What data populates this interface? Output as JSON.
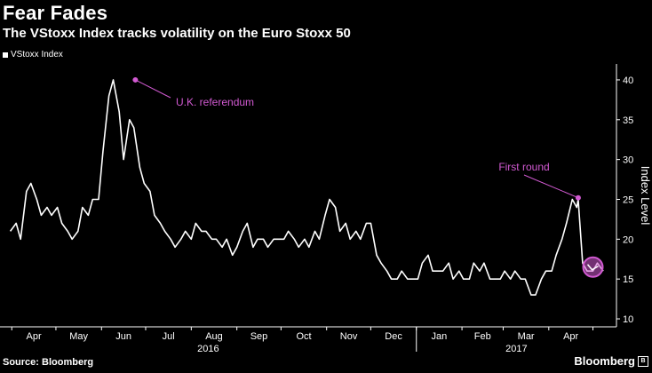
{
  "header": {
    "title": "Fear Fades",
    "subtitle": "The VStoxx Index tracks volatility on the Euro Stoxx 50"
  },
  "footer": {
    "source": "Source: Bloomberg",
    "brand": "Bloomberg",
    "brand_mark": "B"
  },
  "colors": {
    "background": "#000000",
    "line": "#ffffff",
    "annotation": "#d25ad2"
  },
  "chart_data": {
    "type": "line",
    "title": "Fear Fades",
    "subtitle": "The VStoxx Index tracks volatility on the Euro Stoxx 50",
    "ylabel": "Index Level",
    "ylim": [
      9,
      42
    ],
    "yticks": [
      10,
      15,
      20,
      25,
      30,
      35,
      40
    ],
    "y_axis_side": "right",
    "grid": false,
    "legend": {
      "placement": "top-left",
      "entries": [
        "VStoxx Index"
      ]
    },
    "x_month_labels": [
      "Apr",
      "May",
      "Jun",
      "Jul",
      "Aug",
      "Sep",
      "Oct",
      "Nov",
      "Dec",
      "Jan",
      "Feb",
      "Mar",
      "Apr"
    ],
    "x_year_labels": [
      "2016",
      "2017"
    ],
    "series": [
      {
        "name": "VStoxx Index",
        "color": "#ffffff",
        "x": [
          "2016-03-31",
          "2016-04-04",
          "2016-04-07",
          "2016-04-11",
          "2016-04-14",
          "2016-04-18",
          "2016-04-21",
          "2016-04-25",
          "2016-04-28",
          "2016-05-02",
          "2016-05-05",
          "2016-05-09",
          "2016-05-12",
          "2016-05-16",
          "2016-05-19",
          "2016-05-23",
          "2016-05-26",
          "2016-05-30",
          "2016-06-02",
          "2016-06-06",
          "2016-06-09",
          "2016-06-13",
          "2016-06-16",
          "2016-06-20",
          "2016-06-23",
          "2016-06-27",
          "2016-06-30",
          "2016-07-04",
          "2016-07-07",
          "2016-07-11",
          "2016-07-14",
          "2016-07-18",
          "2016-07-21",
          "2016-07-25",
          "2016-07-28",
          "2016-08-01",
          "2016-08-04",
          "2016-08-08",
          "2016-08-11",
          "2016-08-15",
          "2016-08-18",
          "2016-08-22",
          "2016-08-25",
          "2016-08-29",
          "2016-09-01",
          "2016-09-05",
          "2016-09-08",
          "2016-09-12",
          "2016-09-15",
          "2016-09-19",
          "2016-09-22",
          "2016-09-26",
          "2016-09-29",
          "2016-10-03",
          "2016-10-06",
          "2016-10-10",
          "2016-10-13",
          "2016-10-17",
          "2016-10-20",
          "2016-10-24",
          "2016-10-27",
          "2016-10-31",
          "2016-11-03",
          "2016-11-07",
          "2016-11-10",
          "2016-11-14",
          "2016-11-17",
          "2016-11-21",
          "2016-11-24",
          "2016-11-28",
          "2016-12-01",
          "2016-12-05",
          "2016-12-08",
          "2016-12-12",
          "2016-12-15",
          "2016-12-19",
          "2016-12-22",
          "2016-12-26",
          "2016-12-29",
          "2017-01-02",
          "2017-01-05",
          "2017-01-09",
          "2017-01-12",
          "2017-01-16",
          "2017-01-19",
          "2017-01-23",
          "2017-01-26",
          "2017-01-30",
          "2017-02-02",
          "2017-02-06",
          "2017-02-09",
          "2017-02-13",
          "2017-02-16",
          "2017-02-20",
          "2017-02-23",
          "2017-02-27",
          "2017-03-02",
          "2017-03-06",
          "2017-03-09",
          "2017-03-13",
          "2017-03-16",
          "2017-03-20",
          "2017-03-23",
          "2017-03-27",
          "2017-03-30",
          "2017-04-03",
          "2017-04-06",
          "2017-04-10",
          "2017-04-13",
          "2017-04-17",
          "2017-04-20",
          "2017-04-21",
          "2017-04-24",
          "2017-04-27",
          "2017-05-01",
          "2017-05-04",
          "2017-05-08"
        ],
        "values": [
          21,
          22,
          20,
          26,
          27,
          25,
          23,
          24,
          23,
          24,
          22,
          21,
          20,
          21,
          24,
          23,
          25,
          25,
          31,
          38,
          40,
          36,
          30,
          35,
          34,
          29,
          27,
          26,
          23,
          22,
          21,
          20,
          19,
          20,
          21,
          20,
          22,
          21,
          21,
          20,
          20,
          19,
          20,
          18,
          19,
          21,
          22,
          19,
          20,
          20,
          19,
          20,
          20,
          20,
          21,
          20,
          19,
          20,
          19,
          21,
          20,
          23,
          25,
          24,
          21,
          22,
          20,
          21,
          20,
          22,
          22,
          18,
          17,
          16,
          15,
          15,
          16,
          15,
          15,
          15,
          17,
          18,
          16,
          16,
          16,
          17,
          15,
          16,
          15,
          15,
          17,
          16,
          17,
          15,
          15,
          15,
          16,
          15,
          16,
          15,
          15,
          13,
          13,
          15,
          16,
          16,
          18,
          20,
          22,
          25,
          24,
          25,
          17,
          16,
          16,
          17,
          16
        ]
      }
    ],
    "annotations": [
      {
        "label": "U.K. referendum",
        "x": "2016-06-24",
        "y": 40
      },
      {
        "label": "First round",
        "x": "2017-04-21",
        "y": 25.2
      }
    ],
    "highlight": {
      "x": "2017-05-01",
      "y": 16.5,
      "shape": "circle"
    }
  }
}
